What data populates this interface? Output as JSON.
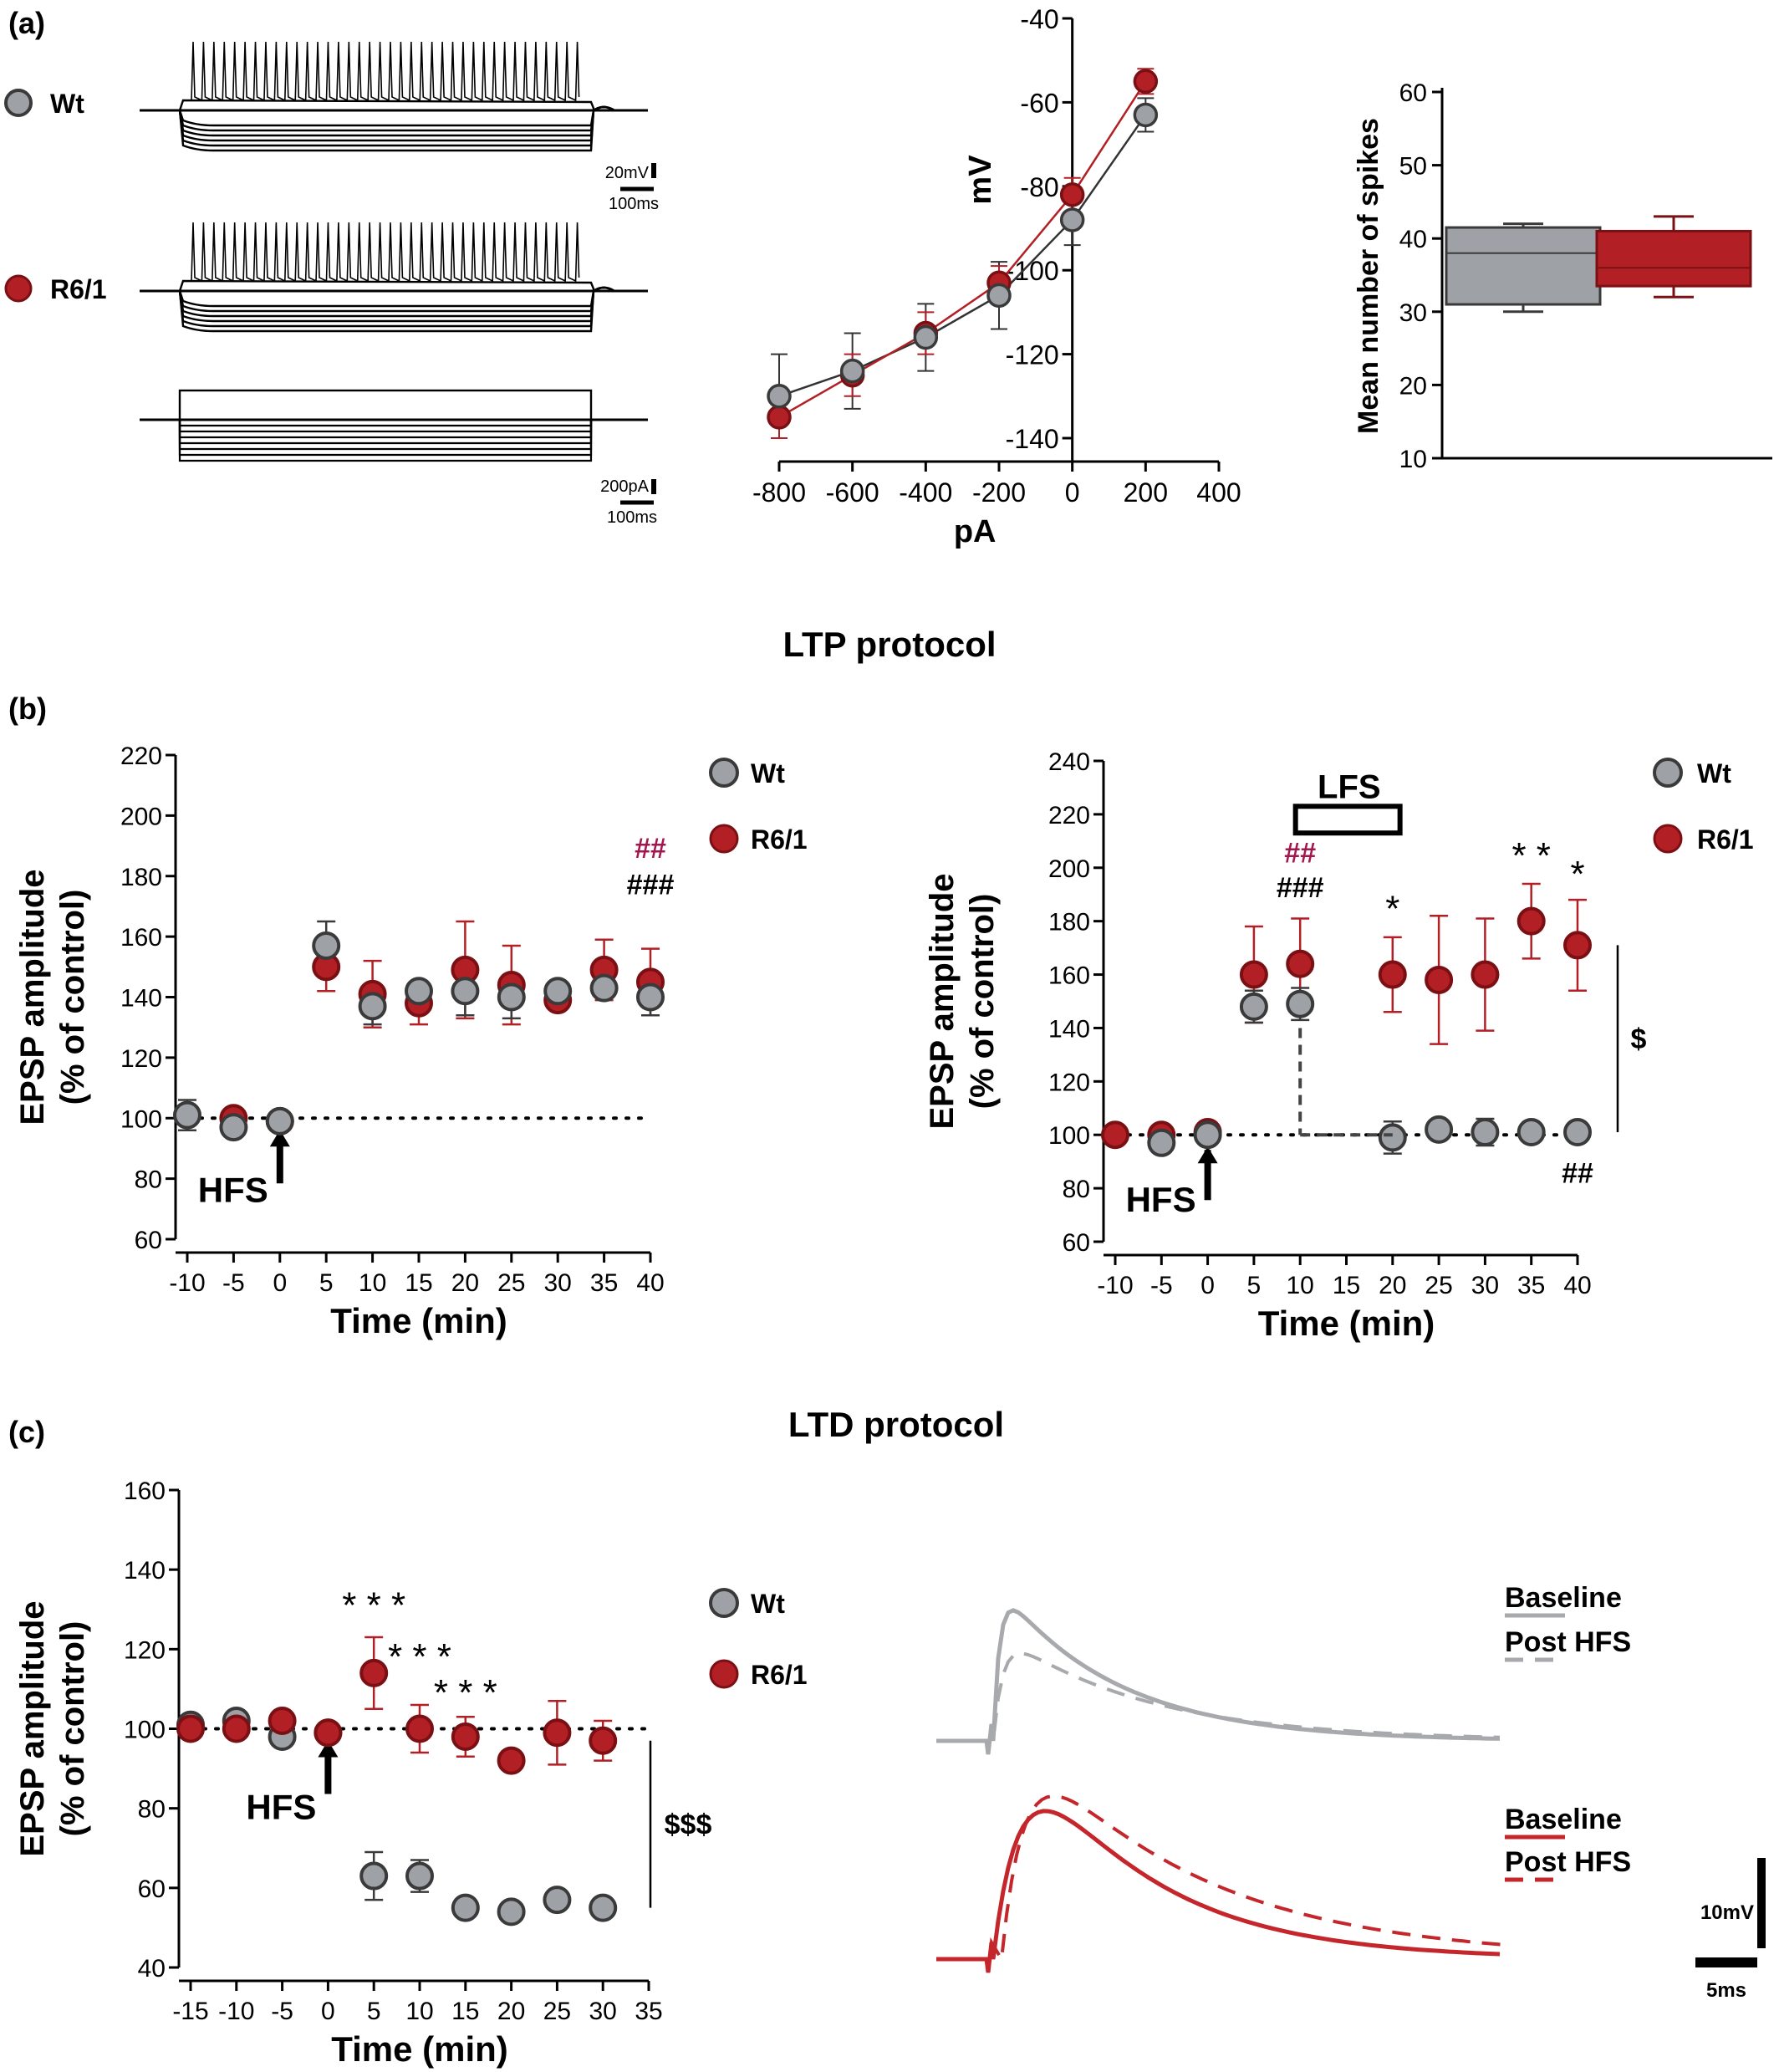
{
  "colors": {
    "wt": "#9ea1a6",
    "wt_stroke": "#3a3a3a",
    "r61": "#b21f24",
    "r61_dark": "#7a1014",
    "hash_pink": "#a3174f",
    "trace_gray": "#a7a9ad",
    "trace_red": "#c4262b"
  },
  "panel_labels": {
    "a": "(a)",
    "b": "(b)",
    "c": "(c)"
  },
  "section_titles": {
    "ltp": "LTP protocol",
    "ltd": "LTD protocol"
  },
  "legend": {
    "wt": "Wt",
    "r61": "R6/1"
  },
  "traces_a": {
    "scale_top_mv": "20mV",
    "scale_top_ms": "100ms",
    "scale_bot_pa": "200pA",
    "scale_bot_ms": "100ms"
  },
  "chart_data": [
    {
      "id": "iv_curve",
      "type": "line",
      "xlabel": "pA",
      "ylabel": "mV",
      "xlim": [
        -800,
        400
      ],
      "ylim": [
        -140,
        -40
      ],
      "xticks": [
        -800,
        -600,
        -400,
        -200,
        0,
        200,
        400
      ],
      "yticks": [
        -40,
        -60,
        -80,
        -100,
        -120,
        -140
      ],
      "x": [
        -800,
        -600,
        -400,
        -200,
        0,
        200
      ],
      "series": [
        {
          "name": "Wt",
          "values": [
            -130,
            -124,
            -116,
            -106,
            -88,
            -63
          ],
          "err": [
            10,
            9,
            8,
            8,
            6,
            4
          ]
        },
        {
          "name": "R6/1",
          "values": [
            -135,
            -125,
            -115,
            -103,
            -82,
            -55
          ],
          "err": [
            5,
            5,
            5,
            4,
            4,
            3
          ]
        }
      ]
    },
    {
      "id": "spikes_box",
      "type": "box",
      "ylabel": "Mean number of spikes",
      "ylim": [
        10,
        60
      ],
      "yticks": [
        10,
        20,
        30,
        40,
        50,
        60
      ],
      "categories": [
        "Wt",
        "R6/1"
      ],
      "boxes": [
        {
          "name": "Wt",
          "min": 30,
          "q1": 31,
          "median": 38,
          "q3": 41.5,
          "max": 42
        },
        {
          "name": "R6/1",
          "min": 32,
          "q1": 33.5,
          "median": 36,
          "q3": 41,
          "max": 43
        }
      ]
    },
    {
      "id": "ltp_hfs",
      "type": "scatter",
      "title": "LTP protocol",
      "xlabel": "Time (min)",
      "ylabel_line1": "EPSP amplitude",
      "ylabel_line2": "(% of control)",
      "xlim": [
        -10,
        40
      ],
      "ylim": [
        60,
        220
      ],
      "xticks": [
        -10,
        -5,
        0,
        5,
        10,
        15,
        20,
        25,
        30,
        35,
        40
      ],
      "yticks": [
        60,
        80,
        100,
        120,
        140,
        160,
        180,
        200,
        220
      ],
      "x": [
        -10,
        -5,
        0,
        5,
        10,
        15,
        20,
        25,
        30,
        35,
        40
      ],
      "series": [
        {
          "name": "R6/1",
          "values": [
            null,
            100,
            99,
            150,
            141,
            138,
            149,
            144,
            139,
            149,
            145
          ],
          "err": [
            0,
            0,
            0,
            8,
            11,
            7,
            16,
            13,
            0,
            10,
            11
          ]
        },
        {
          "name": "Wt",
          "values": [
            101,
            97,
            99,
            157,
            137,
            142,
            142,
            140,
            142,
            143,
            140
          ],
          "err": [
            5,
            0,
            0,
            8,
            6,
            0,
            8,
            7,
            0,
            0,
            6
          ]
        }
      ],
      "stimulus": "HFS",
      "stimulus_time": 0,
      "annotations": [
        {
          "text": "##",
          "x": 40,
          "y": 186,
          "color": "pink"
        },
        {
          "text": "###",
          "x": 40,
          "y": 174,
          "color": "black"
        }
      ]
    },
    {
      "id": "ltp_lfs",
      "type": "scatter",
      "xlabel": "Time (min)",
      "ylabel_line1": "EPSP amplitude",
      "ylabel_line2": "(% of control)",
      "xlim": [
        -10,
        40
      ],
      "ylim": [
        60,
        240
      ],
      "xticks": [
        -10,
        -5,
        0,
        5,
        10,
        15,
        20,
        25,
        30,
        35,
        40
      ],
      "yticks": [
        60,
        80,
        100,
        120,
        140,
        160,
        180,
        200,
        220,
        240
      ],
      "x": [
        -10,
        -5,
        0,
        5,
        10,
        15,
        20,
        25,
        30,
        35,
        40
      ],
      "series": [
        {
          "name": "R6/1",
          "values": [
            100,
            100,
            101,
            160,
            164,
            null,
            160,
            158,
            160,
            180,
            171
          ],
          "err": [
            0,
            0,
            0,
            18,
            17,
            0,
            14,
            24,
            21,
            14,
            17
          ]
        },
        {
          "name": "Wt",
          "values": [
            null,
            97,
            100,
            148,
            149,
            null,
            99,
            102,
            101,
            101,
            101
          ],
          "err": [
            0,
            0,
            0,
            6,
            6,
            0,
            6,
            0,
            5,
            0,
            0
          ]
        }
      ],
      "stimulus": "HFS",
      "stimulus_time": 0,
      "lfs_label": "LFS",
      "lfs_range": [
        10,
        20
      ],
      "annotations": [
        {
          "text": "##",
          "x": 10,
          "y": 202,
          "color": "pink"
        },
        {
          "text": "###",
          "x": 10,
          "y": 189,
          "color": "black"
        },
        {
          "text": "*",
          "x": 20,
          "y": 180,
          "color": "black"
        },
        {
          "text": "* *",
          "x": 35,
          "y": 200,
          "color": "black"
        },
        {
          "text": "*",
          "x": 40,
          "y": 193,
          "color": "black"
        },
        {
          "text": "##",
          "x": 40,
          "y": 82,
          "color": "black"
        }
      ],
      "bracket_label": "$"
    },
    {
      "id": "ltd",
      "type": "scatter",
      "title": "LTD protocol",
      "xlabel": "Time (min)",
      "ylabel_line1": "EPSP amplitude",
      "ylabel_line2": "(% of control)",
      "xlim": [
        -15,
        35
      ],
      "ylim": [
        40,
        160
      ],
      "xticks": [
        -15,
        -10,
        -5,
        0,
        5,
        10,
        15,
        20,
        25,
        30,
        35
      ],
      "yticks": [
        40,
        60,
        80,
        100,
        120,
        140,
        160
      ],
      "x": [
        -15,
        -10,
        -5,
        0,
        5,
        10,
        15,
        20,
        25,
        30
      ],
      "series": [
        {
          "name": "Wt",
          "values": [
            101,
            102,
            98,
            99,
            63,
            63,
            55,
            54,
            57,
            55
          ],
          "err": [
            0,
            0,
            0,
            0,
            6,
            4,
            0,
            0,
            0,
            0
          ]
        },
        {
          "name": "R6/1",
          "values": [
            100,
            100,
            102,
            99,
            114,
            100,
            98,
            92,
            99,
            97
          ],
          "err": [
            0,
            0,
            0,
            0,
            9,
            6,
            5,
            0,
            8,
            5
          ]
        }
      ],
      "stimulus": "HFS",
      "stimulus_time": 0,
      "annotations": [
        {
          "text": "* * *",
          "x": 5,
          "y": 128
        },
        {
          "text": "* * *",
          "x": 10,
          "y": 115
        },
        {
          "text": "* * *",
          "x": 15,
          "y": 106
        }
      ],
      "bracket_label": "$$$"
    }
  ],
  "epsp_traces": {
    "baseline": "Baseline",
    "post": "Post HFS",
    "scale_mv": "10mV",
    "scale_ms": "5ms"
  }
}
